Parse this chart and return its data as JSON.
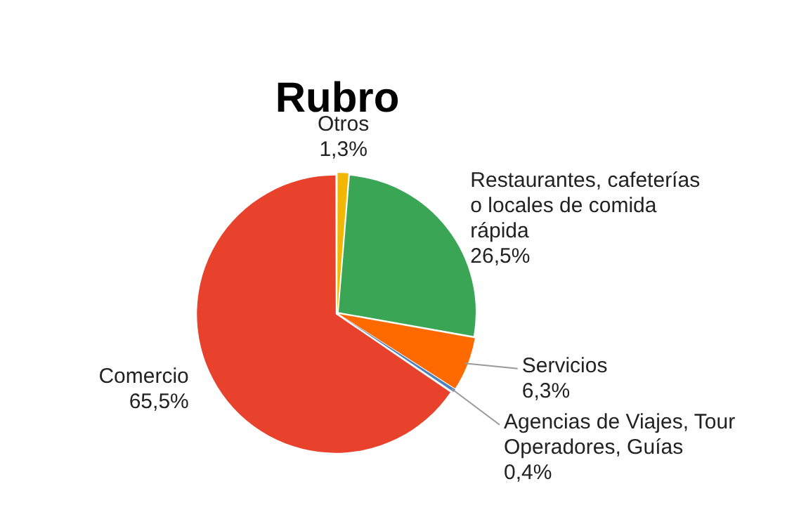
{
  "chart_data": {
    "type": "pie",
    "title": "Rubro",
    "categories": [
      "Otros",
      "Restaurantes, cafeterías o locales de comida rápida",
      "Servicios",
      "Agencias de Viajes, Tour Operadores, Guías",
      "Comercio"
    ],
    "values": [
      1.3,
      26.5,
      6.3,
      0.4,
      65.5
    ],
    "value_labels": [
      "1,3%",
      "26,5%",
      "6,3%",
      "0,4%",
      "65,5%"
    ],
    "colors": [
      "#f2b705",
      "#3aa655",
      "#ff6a00",
      "#4f81bd",
      "#e8412c"
    ],
    "legend": false
  }
}
